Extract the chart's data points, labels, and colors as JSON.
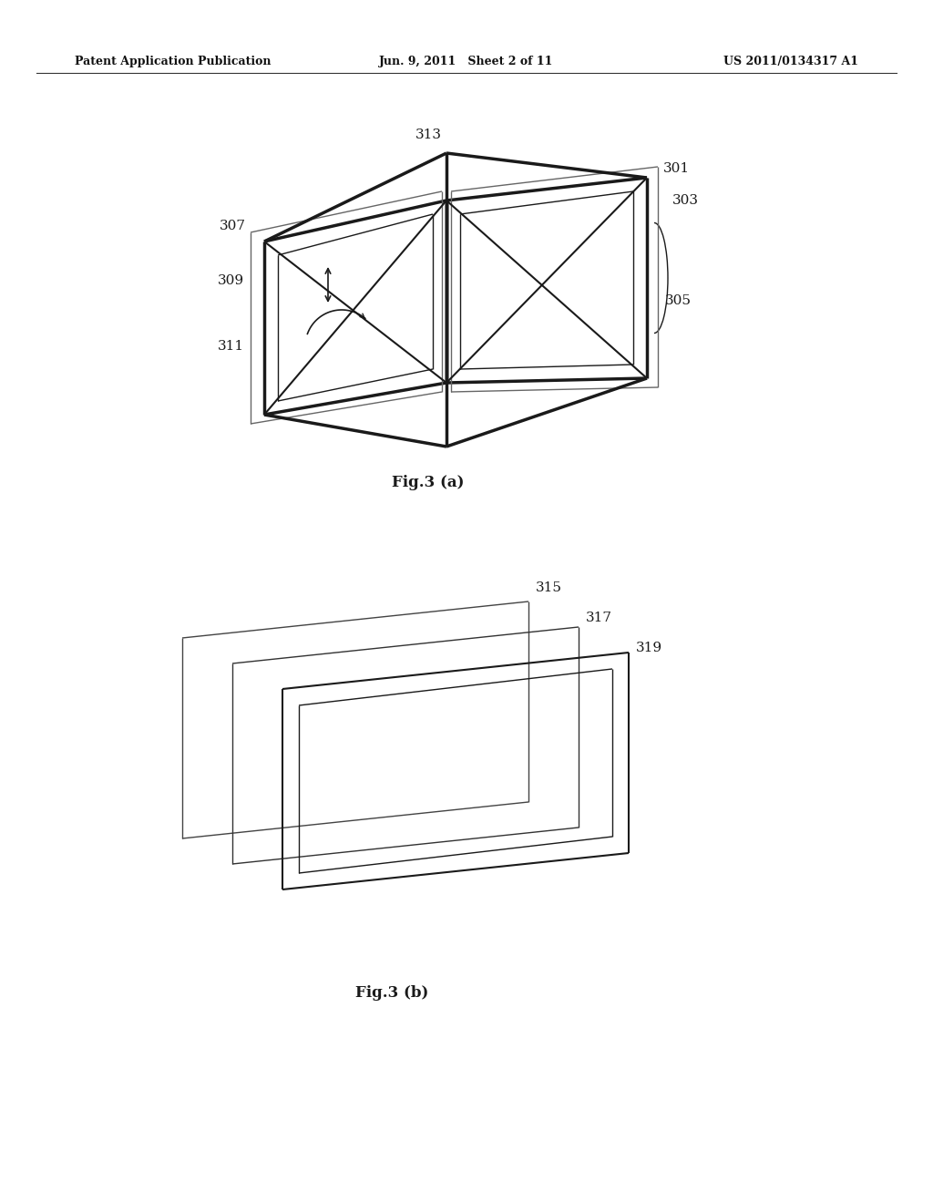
{
  "bg_color": "#ffffff",
  "line_color": "#1a1a1a",
  "header_left": "Patent Application Publication",
  "header_center": "Jun. 9, 2011   Sheet 2 of 11",
  "header_right": "US 2011/0134317 A1",
  "fig_a_caption": "Fig.3 (a)",
  "fig_b_caption": "Fig.3 (b)"
}
